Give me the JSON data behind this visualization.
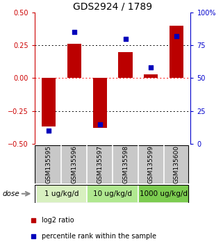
{
  "title": "GDS2924 / 1789",
  "samples": [
    "GSM135595",
    "GSM135596",
    "GSM135597",
    "GSM135598",
    "GSM135599",
    "GSM135600"
  ],
  "log2_ratio": [
    -0.37,
    0.26,
    -0.38,
    0.2,
    0.03,
    0.4
  ],
  "percentile_rank": [
    10,
    85,
    15,
    80,
    58,
    82
  ],
  "dose_groups": [
    {
      "label": "1 ug/kg/d",
      "start": 0,
      "end": 2,
      "color": "#d8f0c0"
    },
    {
      "label": "10 ug/kg/d",
      "start": 2,
      "end": 4,
      "color": "#b0e890"
    },
    {
      "label": "1000 ug/kg/d",
      "start": 4,
      "end": 6,
      "color": "#7ccc50"
    }
  ],
  "bar_color": "#bb0000",
  "dot_color": "#0000bb",
  "left_ylim": [
    -0.5,
    0.5
  ],
  "right_ylim": [
    0,
    100
  ],
  "left_yticks": [
    -0.5,
    -0.25,
    0,
    0.25,
    0.5
  ],
  "right_yticks": [
    0,
    25,
    50,
    75,
    100
  ],
  "right_yticklabels": [
    "0",
    "25",
    "50",
    "75",
    "100%"
  ],
  "hlines": [
    -0.25,
    0,
    0.25
  ],
  "hline_colors": [
    "black",
    "red",
    "black"
  ],
  "hline_styles": [
    "dotted",
    "dotted",
    "dotted"
  ],
  "background_color": "#ffffff",
  "sample_bg_color": "#c8c8c8",
  "bar_width": 0.55,
  "dot_size": 18,
  "left_label_color": "#cc0000",
  "right_label_color": "#0000cc",
  "legend_red_label": "log2 ratio",
  "legend_blue_label": "percentile rank within the sample",
  "dose_label": "dose",
  "title_fontsize": 10,
  "tick_fontsize": 7,
  "sample_fontsize": 6.5,
  "dose_fontsize": 7.5,
  "legend_fontsize": 7
}
